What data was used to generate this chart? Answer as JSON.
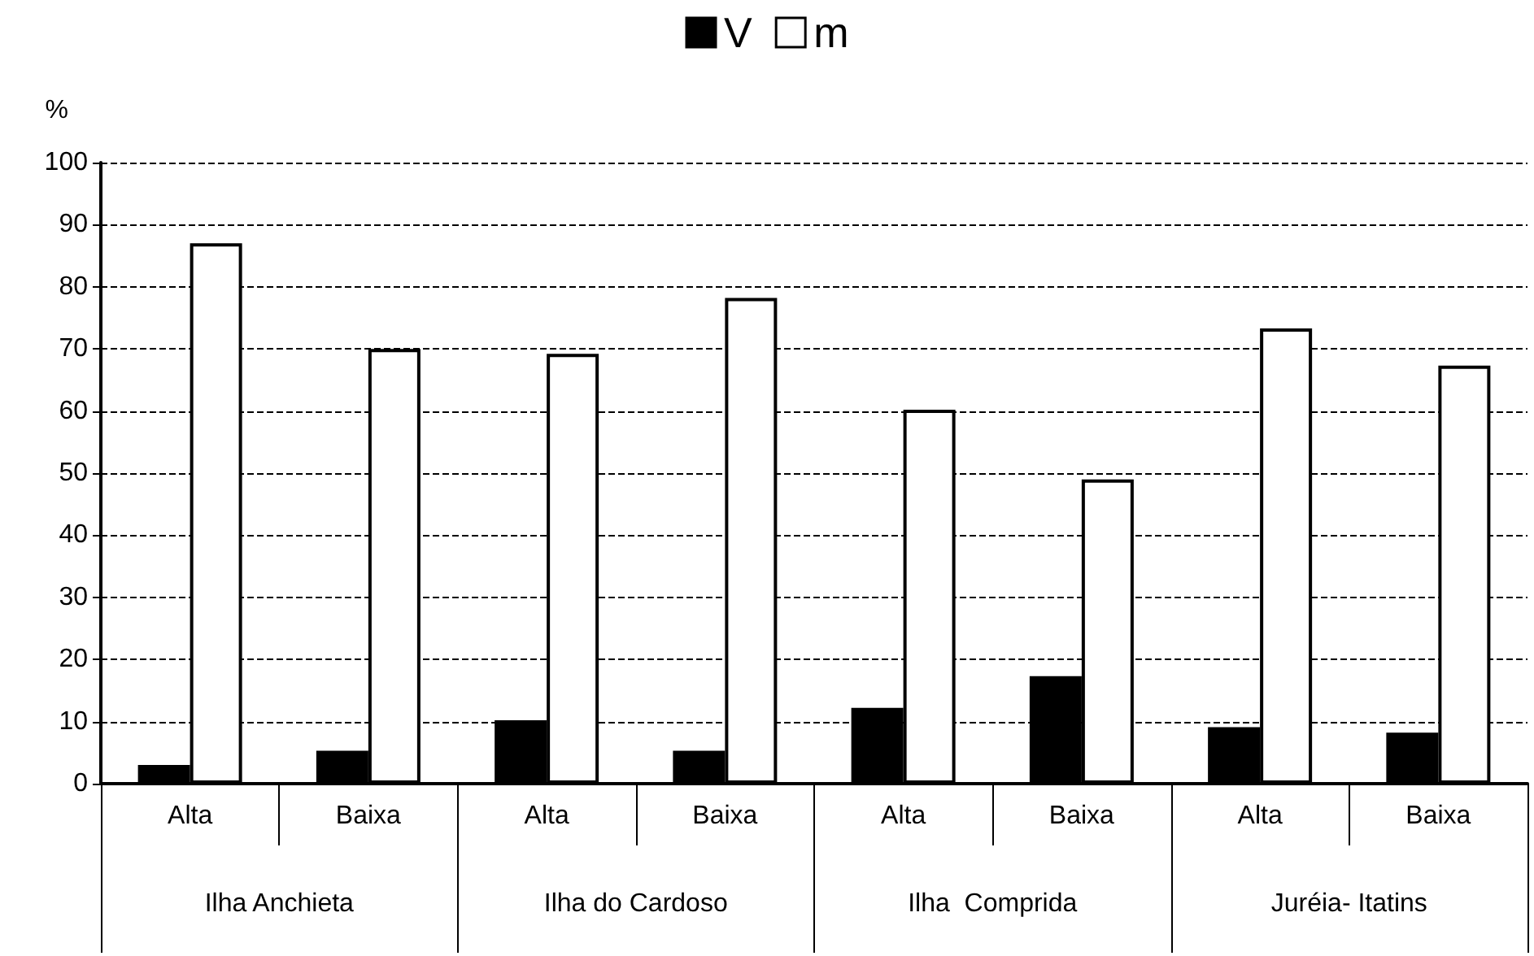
{
  "chart_data": {
    "type": "bar",
    "ylabel": "%",
    "categories": [
      "Alta",
      "Baixa",
      "Alta",
      "Baixa",
      "Alta",
      "Baixa",
      "Alta",
      "Baixa"
    ],
    "annotations": [
      "Ilha Anchieta",
      "Ilha do Cardoso",
      "Ilha  Comprida",
      "Juréia- Itatins"
    ],
    "series": [
      {
        "name": "V",
        "color": "#000000",
        "values": [
          3.0,
          5.3,
          10.2,
          5.3,
          12.2,
          17.3,
          9.1,
          8.2
        ]
      },
      {
        "name": "m",
        "color": "#ffffff",
        "values": [
          87.0,
          70.0,
          69.2,
          78.2,
          60.2,
          49.0,
          73.3,
          67.3
        ]
      }
    ],
    "ylim": [
      0,
      100
    ],
    "yticks": [
      0,
      10,
      20,
      30,
      40,
      50,
      60,
      70,
      80,
      90,
      100
    ],
    "grid": "y",
    "legend": "top"
  }
}
